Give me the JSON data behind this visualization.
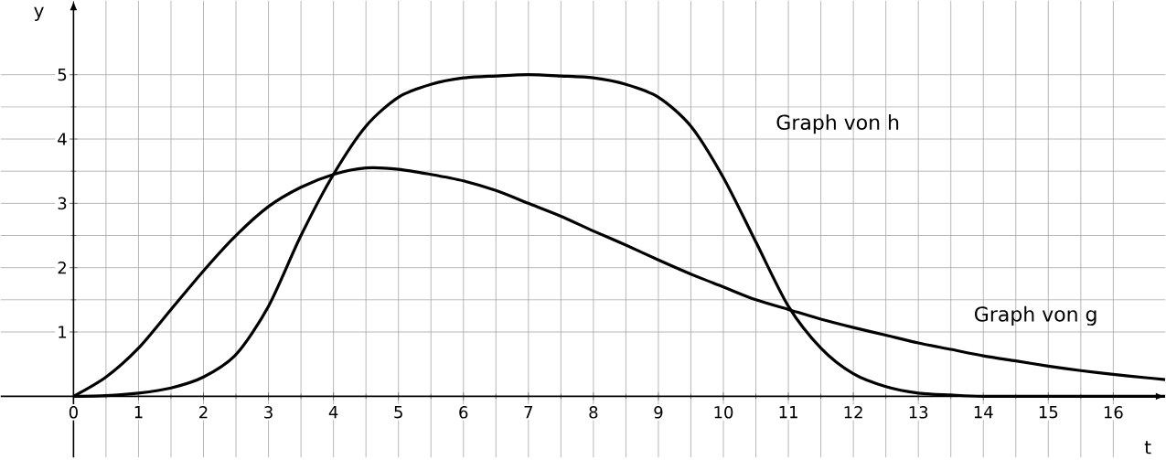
{
  "chart_data": {
    "type": "line",
    "xlabel": "t",
    "ylabel": "y",
    "xlim": [
      -1.12,
      16.8
    ],
    "ylim": [
      -0.95,
      6.15
    ],
    "xticks": [
      0,
      1,
      2,
      3,
      4,
      5,
      6,
      7,
      8,
      9,
      10,
      11,
      12,
      13,
      14,
      15,
      16
    ],
    "yticks": [
      1,
      2,
      3,
      4,
      5
    ],
    "grid": true,
    "marker": "none",
    "line_style": "solid",
    "series": [
      {
        "color": "#000000",
        "x": [
          0,
          0.5,
          1,
          1.5,
          2,
          2.5,
          3,
          3.5,
          4,
          4.5,
          5,
          5.5,
          6,
          6.5,
          7,
          7.5,
          8,
          8.5,
          9,
          9.5,
          10,
          10.5,
          11,
          11.5,
          12,
          12.5,
          13,
          13.5,
          14,
          14.5,
          15,
          15.5,
          16,
          16.5,
          16.8
        ],
        "values": [
          0,
          0.3,
          0.75,
          1.35,
          1.95,
          2.5,
          2.95,
          3.25,
          3.45,
          3.55,
          3.53,
          3.45,
          3.35,
          3.2,
          3.0,
          2.8,
          2.57,
          2.35,
          2.12,
          1.9,
          1.7,
          1.5,
          1.35,
          1.2,
          1.07,
          0.95,
          0.83,
          0.73,
          0.63,
          0.55,
          0.47,
          0.4,
          0.34,
          0.29,
          0.26
        ]
      },
      {
        "color": "#000000",
        "x": [
          0,
          0.5,
          1,
          1.5,
          2,
          2.5,
          3,
          3.5,
          4,
          4.5,
          5,
          5.5,
          6,
          6.5,
          7,
          7.5,
          8,
          8.5,
          9,
          9.5,
          10,
          10.5,
          11,
          11.5,
          12,
          12.5,
          13,
          13.5,
          14,
          15,
          16,
          16.8
        ],
        "values": [
          0,
          0.01,
          0.05,
          0.13,
          0.3,
          0.65,
          1.4,
          2.5,
          3.45,
          4.2,
          4.65,
          4.85,
          4.95,
          4.98,
          5.0,
          4.98,
          4.95,
          4.85,
          4.65,
          4.2,
          3.4,
          2.4,
          1.4,
          0.75,
          0.35,
          0.15,
          0.05,
          0.02,
          0,
          0,
          0,
          0
        ]
      }
    ],
    "annotations": [
      "Graph von h",
      "Graph von g"
    ]
  }
}
